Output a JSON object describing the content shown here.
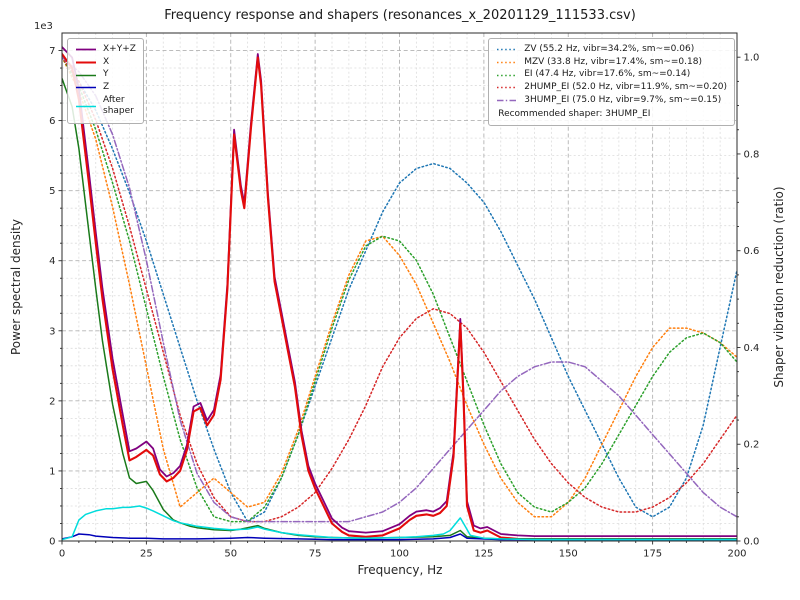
{
  "chart_data": {
    "type": "line",
    "title": "Frequency response and shapers (resonances_x_20201129_111533.csv)",
    "xlabel": "Frequency, Hz",
    "ylabel": "Power spectral density",
    "ylabel_right": "Shaper vibration reduction (ratio)",
    "y_left_offset": "1e3",
    "xlim": [
      0,
      200
    ],
    "ylim_left": [
      0,
      7.25
    ],
    "ylim_right": [
      0,
      1.05
    ],
    "x_ticks": [
      0,
      25,
      50,
      75,
      100,
      125,
      150,
      175,
      200
    ],
    "y_left_ticks": [
      0,
      1,
      2,
      3,
      4,
      5,
      6,
      7
    ],
    "y_right_ticks": [
      0.0,
      0.2,
      0.4,
      0.6,
      0.8,
      1.0
    ],
    "grid": "major+minor dashed",
    "legend_positions": {
      "psd": "upper left",
      "shapers": "upper right"
    },
    "legend_note": "Recommended shaper: 3HUMP_EI",
    "series": [
      {
        "name": "X+Y+Z",
        "legend": "X+Y+Z",
        "color": "#800080",
        "style": "solid",
        "axis": "left",
        "x": [
          0,
          3,
          5,
          8,
          10,
          12,
          15,
          18,
          20,
          22,
          25,
          27,
          29,
          31,
          33,
          35,
          37,
          39,
          41,
          43,
          45,
          47,
          49,
          51,
          53,
          54,
          56,
          58,
          59,
          61,
          63,
          65,
          67,
          69,
          71,
          73,
          75,
          78,
          80,
          83,
          85,
          90,
          95,
          100,
          103,
          105,
          108,
          110,
          112,
          114,
          116,
          118,
          119,
          120,
          122,
          124,
          126,
          128,
          130,
          135,
          140,
          150,
          160,
          170,
          180,
          190,
          200
        ],
        "y": [
          7.05,
          6.9,
          6.45,
          5.25,
          4.4,
          3.6,
          2.6,
          1.8,
          1.28,
          1.32,
          1.42,
          1.32,
          1.02,
          0.92,
          0.97,
          1.07,
          1.37,
          1.92,
          1.97,
          1.72,
          1.87,
          2.37,
          3.67,
          5.87,
          5.07,
          4.82,
          5.97,
          6.95,
          6.57,
          4.97,
          3.77,
          3.27,
          2.77,
          2.27,
          1.57,
          1.07,
          0.82,
          0.52,
          0.32,
          0.19,
          0.14,
          0.12,
          0.14,
          0.24,
          0.36,
          0.42,
          0.44,
          0.42,
          0.47,
          0.57,
          1.27,
          3.17,
          2.07,
          0.57,
          0.22,
          0.18,
          0.2,
          0.15,
          0.1,
          0.08,
          0.07,
          0.07,
          0.07,
          0.07,
          0.07,
          0.07,
          0.07
        ]
      },
      {
        "name": "X",
        "legend": "X",
        "color": "#e30b0b",
        "style": "solid",
        "axis": "left",
        "x": [
          0,
          3,
          5,
          8,
          10,
          12,
          15,
          18,
          20,
          22,
          25,
          27,
          29,
          31,
          33,
          35,
          37,
          39,
          41,
          43,
          45,
          47,
          49,
          51,
          53,
          54,
          56,
          58,
          59,
          61,
          63,
          65,
          67,
          69,
          71,
          73,
          75,
          78,
          80,
          83,
          85,
          90,
          95,
          100,
          103,
          105,
          108,
          110,
          112,
          114,
          116,
          118,
          119,
          120,
          122,
          124,
          126,
          128,
          130,
          135,
          140,
          150,
          160,
          170,
          180,
          190,
          200
        ],
        "y": [
          6.95,
          6.75,
          6.3,
          5.1,
          4.25,
          3.45,
          2.45,
          1.65,
          1.15,
          1.2,
          1.3,
          1.22,
          0.95,
          0.85,
          0.9,
          1.0,
          1.3,
          1.85,
          1.9,
          1.65,
          1.8,
          2.3,
          3.6,
          5.8,
          5.0,
          4.75,
          5.9,
          6.9,
          6.5,
          4.9,
          3.7,
          3.2,
          2.7,
          2.2,
          1.5,
          1.0,
          0.75,
          0.45,
          0.25,
          0.13,
          0.08,
          0.06,
          0.08,
          0.18,
          0.3,
          0.36,
          0.38,
          0.36,
          0.4,
          0.5,
          1.2,
          3.1,
          2.0,
          0.5,
          0.15,
          0.12,
          0.15,
          0.1,
          0.05,
          0.03,
          0.02,
          0.02,
          0.02,
          0.02,
          0.02,
          0.02,
          0.02
        ]
      },
      {
        "name": "Y",
        "legend": "Y",
        "color": "#1a7a1a",
        "style": "solid",
        "axis": "left",
        "x": [
          0,
          3,
          5,
          8,
          10,
          12,
          15,
          18,
          20,
          22,
          25,
          27,
          30,
          33,
          35,
          38,
          40,
          45,
          50,
          53,
          55,
          58,
          60,
          65,
          70,
          75,
          80,
          90,
          100,
          110,
          115,
          118,
          120,
          125,
          130,
          140,
          150,
          160,
          170,
          180,
          190,
          200
        ],
        "y": [
          6.6,
          6.2,
          5.6,
          4.4,
          3.6,
          2.85,
          1.95,
          1.25,
          0.9,
          0.82,
          0.85,
          0.72,
          0.45,
          0.3,
          0.26,
          0.21,
          0.19,
          0.16,
          0.15,
          0.17,
          0.19,
          0.22,
          0.18,
          0.12,
          0.08,
          0.06,
          0.05,
          0.04,
          0.05,
          0.06,
          0.08,
          0.15,
          0.06,
          0.04,
          0.03,
          0.03,
          0.03,
          0.03,
          0.03,
          0.03,
          0.03,
          0.03
        ]
      },
      {
        "name": "Z",
        "legend": "Z",
        "color": "#0000b8",
        "style": "solid",
        "axis": "left",
        "x": [
          0,
          3,
          5,
          8,
          10,
          15,
          20,
          25,
          30,
          40,
          50,
          55,
          60,
          70,
          80,
          90,
          100,
          110,
          115,
          118,
          120,
          130,
          140,
          160,
          180,
          200
        ],
        "y": [
          0.03,
          0.06,
          0.1,
          0.09,
          0.07,
          0.05,
          0.04,
          0.04,
          0.03,
          0.03,
          0.04,
          0.05,
          0.04,
          0.03,
          0.02,
          0.02,
          0.02,
          0.03,
          0.05,
          0.1,
          0.04,
          0.02,
          0.02,
          0.02,
          0.02,
          0.02
        ]
      },
      {
        "name": "After shaper",
        "legend": "After\nshaper",
        "color": "#00dcdc",
        "style": "solid",
        "axis": "left",
        "x": [
          0,
          3,
          5,
          7,
          10,
          13,
          15,
          18,
          20,
          23,
          25,
          27,
          30,
          33,
          35,
          38,
          40,
          45,
          50,
          55,
          58,
          60,
          65,
          70,
          75,
          80,
          90,
          100,
          105,
          110,
          113,
          115,
          118,
          119,
          121,
          125,
          130,
          140,
          150,
          160,
          170,
          180,
          190,
          200
        ],
        "y": [
          0.02,
          0.06,
          0.3,
          0.38,
          0.43,
          0.46,
          0.46,
          0.48,
          0.48,
          0.5,
          0.47,
          0.43,
          0.36,
          0.29,
          0.26,
          0.23,
          0.21,
          0.18,
          0.16,
          0.17,
          0.2,
          0.17,
          0.12,
          0.09,
          0.07,
          0.05,
          0.04,
          0.05,
          0.06,
          0.08,
          0.1,
          0.15,
          0.33,
          0.25,
          0.08,
          0.04,
          0.03,
          0.02,
          0.02,
          0.02,
          0.02,
          0.02,
          0.02,
          0.02
        ]
      },
      {
        "name": "ZV",
        "legend": "ZV (55.2 Hz, vibr=34.2%, sm~=0.06)",
        "color": "#1f77b4",
        "style": "dotted",
        "axis": "right",
        "x": [
          0,
          5,
          10,
          15,
          20,
          25,
          30,
          35,
          40,
          45,
          50,
          55,
          60,
          65,
          70,
          75,
          80,
          85,
          90,
          95,
          100,
          105,
          110,
          115,
          120,
          125,
          130,
          135,
          140,
          145,
          150,
          155,
          160,
          165,
          170,
          175,
          180,
          185,
          190,
          195,
          200
        ],
        "y": [
          1.0,
          0.95,
          0.89,
          0.81,
          0.72,
          0.62,
          0.51,
          0.4,
          0.29,
          0.19,
          0.1,
          0.04,
          0.06,
          0.13,
          0.22,
          0.32,
          0.42,
          0.52,
          0.6,
          0.68,
          0.74,
          0.77,
          0.78,
          0.77,
          0.74,
          0.7,
          0.64,
          0.57,
          0.5,
          0.42,
          0.34,
          0.27,
          0.2,
          0.13,
          0.07,
          0.05,
          0.07,
          0.13,
          0.24,
          0.4,
          0.56
        ]
      },
      {
        "name": "MZV",
        "legend": "MZV (33.8 Hz, vibr=17.4%, sm~=0.18)",
        "color": "#ff7f0e",
        "style": "dotted",
        "axis": "right",
        "x": [
          0,
          5,
          10,
          15,
          20,
          25,
          30,
          35,
          40,
          45,
          50,
          55,
          60,
          65,
          70,
          75,
          80,
          85,
          90,
          95,
          100,
          105,
          110,
          115,
          120,
          125,
          130,
          135,
          140,
          145,
          150,
          155,
          160,
          165,
          170,
          175,
          180,
          185,
          190,
          195,
          200
        ],
        "y": [
          1.0,
          0.93,
          0.83,
          0.69,
          0.53,
          0.36,
          0.19,
          0.07,
          0.1,
          0.13,
          0.1,
          0.07,
          0.08,
          0.14,
          0.23,
          0.34,
          0.45,
          0.55,
          0.62,
          0.63,
          0.59,
          0.53,
          0.45,
          0.37,
          0.28,
          0.2,
          0.13,
          0.08,
          0.05,
          0.05,
          0.08,
          0.13,
          0.2,
          0.27,
          0.34,
          0.4,
          0.44,
          0.44,
          0.43,
          0.41,
          0.38
        ]
      },
      {
        "name": "EI",
        "legend": "EI (47.4 Hz, vibr=17.6%, sm~=0.14)",
        "color": "#2ca02c",
        "style": "dotted",
        "axis": "right",
        "x": [
          0,
          5,
          10,
          15,
          20,
          25,
          30,
          35,
          40,
          45,
          50,
          55,
          60,
          65,
          70,
          75,
          80,
          85,
          90,
          95,
          100,
          105,
          110,
          115,
          120,
          125,
          130,
          135,
          140,
          145,
          150,
          155,
          160,
          165,
          170,
          175,
          180,
          185,
          190,
          195,
          200
        ],
        "y": [
          1.0,
          0.94,
          0.85,
          0.74,
          0.62,
          0.48,
          0.34,
          0.21,
          0.11,
          0.05,
          0.04,
          0.04,
          0.07,
          0.13,
          0.22,
          0.33,
          0.44,
          0.54,
          0.61,
          0.63,
          0.62,
          0.58,
          0.51,
          0.42,
          0.33,
          0.24,
          0.16,
          0.1,
          0.07,
          0.06,
          0.08,
          0.11,
          0.16,
          0.22,
          0.28,
          0.34,
          0.39,
          0.42,
          0.43,
          0.41,
          0.37
        ]
      },
      {
        "name": "2HUMP_EI",
        "legend": "2HUMP_EI (52.0 Hz, vibr=11.9%, sm~=0.20)",
        "color": "#d62728",
        "style": "dotted",
        "axis": "right",
        "x": [
          0,
          5,
          10,
          15,
          20,
          25,
          30,
          35,
          40,
          45,
          50,
          55,
          60,
          65,
          70,
          75,
          80,
          85,
          90,
          95,
          100,
          105,
          110,
          115,
          120,
          125,
          130,
          135,
          140,
          145,
          150,
          155,
          160,
          165,
          170,
          175,
          180,
          185,
          190,
          195,
          200
        ],
        "y": [
          1.0,
          0.95,
          0.87,
          0.77,
          0.65,
          0.52,
          0.39,
          0.26,
          0.16,
          0.09,
          0.05,
          0.04,
          0.04,
          0.05,
          0.07,
          0.1,
          0.15,
          0.21,
          0.28,
          0.36,
          0.42,
          0.46,
          0.48,
          0.47,
          0.44,
          0.39,
          0.33,
          0.27,
          0.21,
          0.16,
          0.12,
          0.09,
          0.07,
          0.06,
          0.06,
          0.07,
          0.09,
          0.12,
          0.16,
          0.21,
          0.26
        ]
      },
      {
        "name": "3HUMP_EI",
        "legend": "3HUMP_EI (75.0 Hz, vibr=9.7%, sm~=0.15)",
        "color": "#9467bd",
        "style": "dashdot",
        "axis": "right",
        "x": [
          0,
          5,
          10,
          15,
          20,
          25,
          30,
          35,
          40,
          45,
          50,
          55,
          60,
          65,
          70,
          75,
          80,
          85,
          90,
          95,
          100,
          105,
          110,
          115,
          120,
          125,
          130,
          135,
          140,
          145,
          150,
          155,
          160,
          165,
          170,
          175,
          180,
          185,
          190,
          195,
          200
        ],
        "y": [
          1.0,
          0.97,
          0.92,
          0.84,
          0.73,
          0.58,
          0.41,
          0.25,
          0.14,
          0.08,
          0.05,
          0.04,
          0.04,
          0.04,
          0.04,
          0.04,
          0.04,
          0.04,
          0.05,
          0.06,
          0.08,
          0.11,
          0.15,
          0.19,
          0.23,
          0.27,
          0.31,
          0.34,
          0.36,
          0.37,
          0.37,
          0.36,
          0.33,
          0.3,
          0.26,
          0.22,
          0.18,
          0.14,
          0.1,
          0.07,
          0.05
        ]
      }
    ]
  }
}
